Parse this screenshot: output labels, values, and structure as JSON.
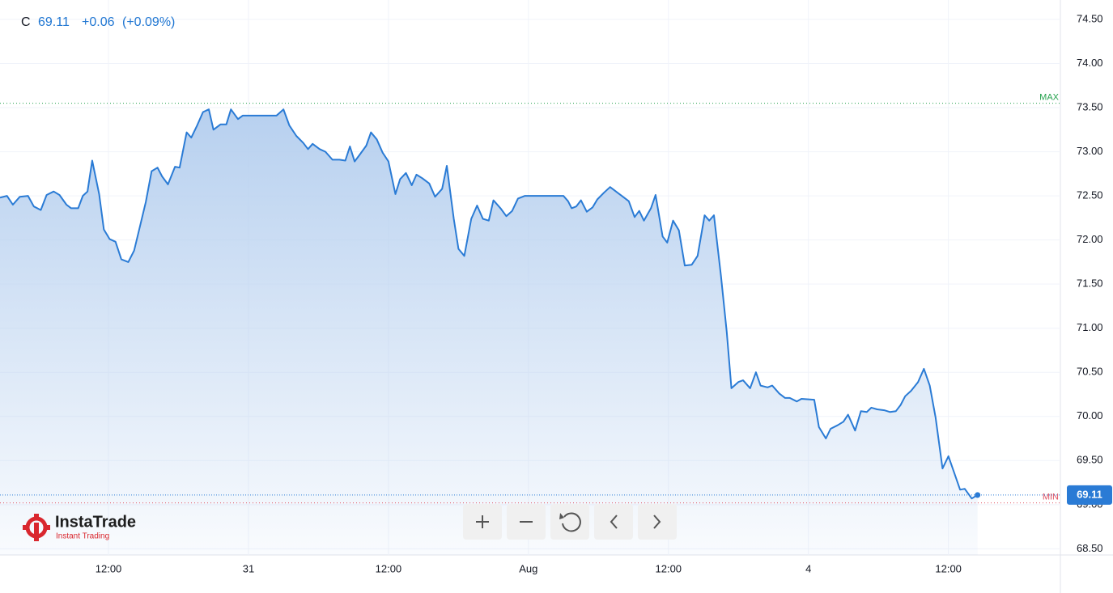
{
  "chart_data": {
    "type": "area",
    "symbol": "C",
    "change": "+0.06",
    "change_pct": "(+0.09%)",
    "color": "#2a7bd5",
    "x": [
      2.7,
      3.3,
      3.8,
      4.4,
      5.1,
      5.6,
      6.2,
      6.7,
      7.3,
      7.8,
      8.4,
      8.8,
      9.4,
      9.8,
      10.2,
      10.6,
      11.2,
      11.6,
      12.1,
      12.6,
      13.1,
      13.7,
      14.2,
      14.6,
      15.2,
      15.7,
      16.2,
      16.6,
      17.1,
      17.7,
      18.1,
      18.7,
      19.1,
      19.6,
      20.1,
      20.6,
      21.0,
      21.6,
      22.1,
      22.5,
      23.1,
      23.5,
      26.4,
      27.0,
      27.5,
      28.1,
      28.7,
      29.1,
      29.5,
      30.1,
      30.6,
      31.2,
      31.8,
      32.3,
      32.7,
      33.1,
      33.5,
      34.1,
      34.5,
      35.0,
      35.5,
      36.0,
      36.6,
      37.0,
      37.5,
      38.0,
      38.4,
      38.9,
      39.5,
      40.0,
      40.6,
      41.0,
      41.6,
      42.0,
      42.5,
      43.1,
      43.6,
      44.1,
      44.6,
      45.0,
      45.6,
      46.1,
      46.6,
      47.1,
      47.7,
      51.0,
      51.4,
      51.7,
      52.1,
      52.5,
      53.0,
      53.5,
      53.9,
      54.5,
      55.0,
      55.4,
      56.0,
      56.6,
      57.1,
      57.5,
      57.9,
      58.5,
      58.9,
      59.5,
      59.9,
      60.4,
      60.9,
      61.4,
      62.0,
      62.5,
      63.1,
      63.5,
      63.9,
      64.5,
      65.0,
      65.4,
      66.0,
      66.4,
      67.0,
      67.5,
      67.9,
      68.5,
      68.9,
      69.5,
      70.0,
      70.4,
      71.0,
      71.4,
      72.5,
      72.9,
      73.5,
      73.9,
      74.5,
      75.0,
      75.4,
      76.0,
      76.5,
      77.0,
      77.4,
      77.9,
      78.5,
      79.0,
      79.5,
      79.9,
      80.3,
      80.8,
      81.4,
      81.9,
      82.4,
      82.9,
      83.5,
      84.0,
      84.5,
      85.0,
      85.4,
      86.0,
      86.5
    ],
    "values": [
      72.48,
      72.5,
      72.4,
      72.49,
      72.5,
      72.38,
      72.34,
      72.51,
      72.55,
      72.51,
      72.4,
      72.36,
      72.36,
      72.5,
      72.55,
      72.9,
      72.52,
      72.12,
      72.01,
      71.98,
      71.78,
      71.75,
      71.88,
      72.1,
      72.43,
      72.78,
      72.82,
      72.72,
      72.63,
      72.83,
      72.82,
      73.22,
      73.16,
      73.3,
      73.45,
      73.48,
      73.25,
      73.31,
      73.31,
      73.48,
      73.37,
      73.41,
      73.41,
      73.48,
      73.3,
      73.18,
      73.1,
      73.03,
      73.09,
      73.03,
      73.0,
      72.91,
      72.91,
      72.9,
      73.06,
      72.89,
      72.96,
      73.07,
      73.22,
      73.14,
      72.99,
      72.89,
      72.52,
      72.69,
      72.76,
      72.62,
      72.74,
      72.7,
      72.64,
      72.49,
      72.58,
      72.84,
      72.24,
      71.9,
      71.82,
      72.24,
      72.39,
      72.24,
      72.22,
      72.45,
      72.36,
      72.27,
      72.33,
      72.47,
      72.5,
      72.5,
      72.44,
      72.36,
      72.38,
      72.45,
      72.32,
      72.37,
      72.46,
      72.54,
      72.6,
      72.56,
      72.5,
      72.44,
      72.26,
      72.33,
      72.22,
      72.36,
      72.51,
      72.04,
      71.97,
      72.22,
      72.11,
      71.71,
      71.72,
      71.82,
      72.28,
      72.22,
      72.28,
      71.6,
      70.96,
      70.32,
      70.39,
      70.41,
      70.32,
      70.5,
      70.35,
      70.33,
      70.35,
      70.26,
      70.21,
      70.21,
      70.17,
      70.2,
      70.19,
      69.88,
      69.75,
      69.86,
      69.9,
      69.94,
      70.02,
      69.84,
      70.06,
      70.05,
      70.1,
      70.08,
      70.07,
      70.05,
      70.06,
      70.13,
      70.23,
      70.29,
      70.39,
      70.54,
      70.35,
      69.99,
      69.41,
      69.55,
      69.36,
      69.17,
      69.18,
      69.07,
      69.11
    ],
    "xlim": [
      2.7,
      93.6
    ],
    "xticks": [
      {
        "value": 12,
        "label": "12:00"
      },
      {
        "value": 24,
        "label": "31"
      },
      {
        "value": 36,
        "label": "12:00"
      },
      {
        "value": 48,
        "label": "Aug"
      },
      {
        "value": 60,
        "label": "12:00"
      },
      {
        "value": 72,
        "label": "4"
      },
      {
        "value": 84,
        "label": "12:00"
      }
    ],
    "ylim": [
      68.43,
      74.72
    ],
    "yticks": [
      {
        "value": 68.5,
        "label": "68.50"
      },
      {
        "value": 69,
        "label": "69.00"
      },
      {
        "value": 69.5,
        "label": "69.50"
      },
      {
        "value": 70,
        "label": "70.00"
      },
      {
        "value": 70.5,
        "label": "70.50"
      },
      {
        "value": 71,
        "label": "71.00"
      },
      {
        "value": 71.5,
        "label": "71.50"
      },
      {
        "value": 72,
        "label": "72.00"
      },
      {
        "value": 72.5,
        "label": "72.50"
      },
      {
        "value": 73,
        "label": "73.00"
      },
      {
        "value": 73.5,
        "label": "73.50"
      },
      {
        "value": 74,
        "label": "74.00"
      },
      {
        "value": 74.5,
        "label": "74.50"
      }
    ],
    "grid": true,
    "max_line": {
      "label": "MAX",
      "value": 73.55,
      "color": "#22a04b"
    },
    "min_line": {
      "label": "MIN",
      "value": 69.02,
      "color": "#e04f5f"
    },
    "brand": {
      "name": "InstaTrade",
      "tagline": "Instant Trading"
    }
  }
}
